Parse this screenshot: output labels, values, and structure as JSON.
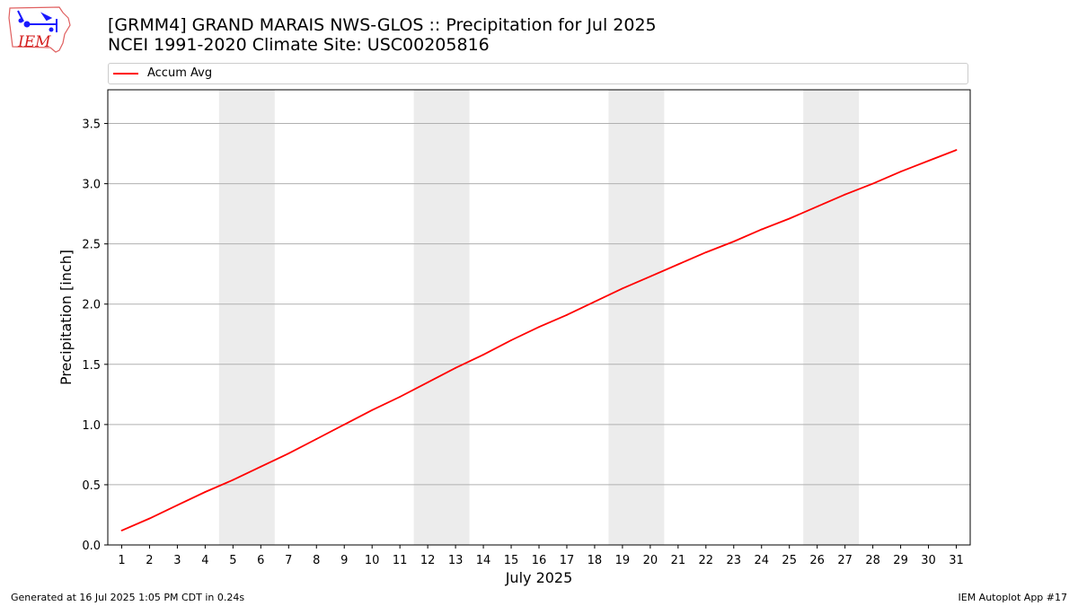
{
  "logo": {
    "text": "IEM"
  },
  "header": {
    "title_line1": "[GRMM4] GRAND MARAIS NWS-GLOS :: Precipitation for Jul 2025",
    "title_line2": "NCEI 1991-2020 Climate Site: USC00205816"
  },
  "legend": {
    "label": "Accum Avg",
    "color": "#ff0000"
  },
  "footer": {
    "left": "Generated at 16 Jul 2025 1:05 PM CDT in 0.24s",
    "right": "IEM Autoplot App #17"
  },
  "chart_data": {
    "type": "line",
    "xlabel": "July 2025",
    "ylabel": "Precipitation [inch]",
    "xlim": [
      0.5,
      31.5
    ],
    "ylim": [
      0,
      3.78
    ],
    "x": [
      1,
      2,
      3,
      4,
      5,
      6,
      7,
      8,
      9,
      10,
      11,
      12,
      13,
      14,
      15,
      16,
      17,
      18,
      19,
      20,
      21,
      22,
      23,
      24,
      25,
      26,
      27,
      28,
      29,
      30,
      31
    ],
    "x_ticks": [
      "1",
      "2",
      "3",
      "4",
      "5",
      "6",
      "7",
      "8",
      "9",
      "10",
      "11",
      "12",
      "13",
      "14",
      "15",
      "16",
      "17",
      "18",
      "19",
      "20",
      "21",
      "22",
      "23",
      "24",
      "25",
      "26",
      "27",
      "28",
      "29",
      "30",
      "31"
    ],
    "y_ticks": [
      "0.0",
      "0.5",
      "1.0",
      "1.5",
      "2.0",
      "2.5",
      "3.0",
      "3.5"
    ],
    "y_tick_values": [
      0,
      0.5,
      1.0,
      1.5,
      2.0,
      2.5,
      3.0,
      3.5
    ],
    "grid": "horizontal",
    "legend_position": "top",
    "weekend_shading": [
      [
        5,
        6
      ],
      [
        12,
        13
      ],
      [
        19,
        20
      ],
      [
        26,
        27
      ]
    ],
    "weekend_color": "#ececec",
    "series": [
      {
        "name": "Accum Avg",
        "color": "#ff0000",
        "values": [
          0.12,
          0.22,
          0.33,
          0.44,
          0.54,
          0.65,
          0.76,
          0.88,
          1.0,
          1.12,
          1.23,
          1.35,
          1.47,
          1.58,
          1.7,
          1.81,
          1.91,
          2.02,
          2.13,
          2.23,
          2.33,
          2.43,
          2.52,
          2.62,
          2.71,
          2.81,
          2.91,
          3.0,
          3.1,
          3.19,
          3.28
        ]
      }
    ]
  }
}
